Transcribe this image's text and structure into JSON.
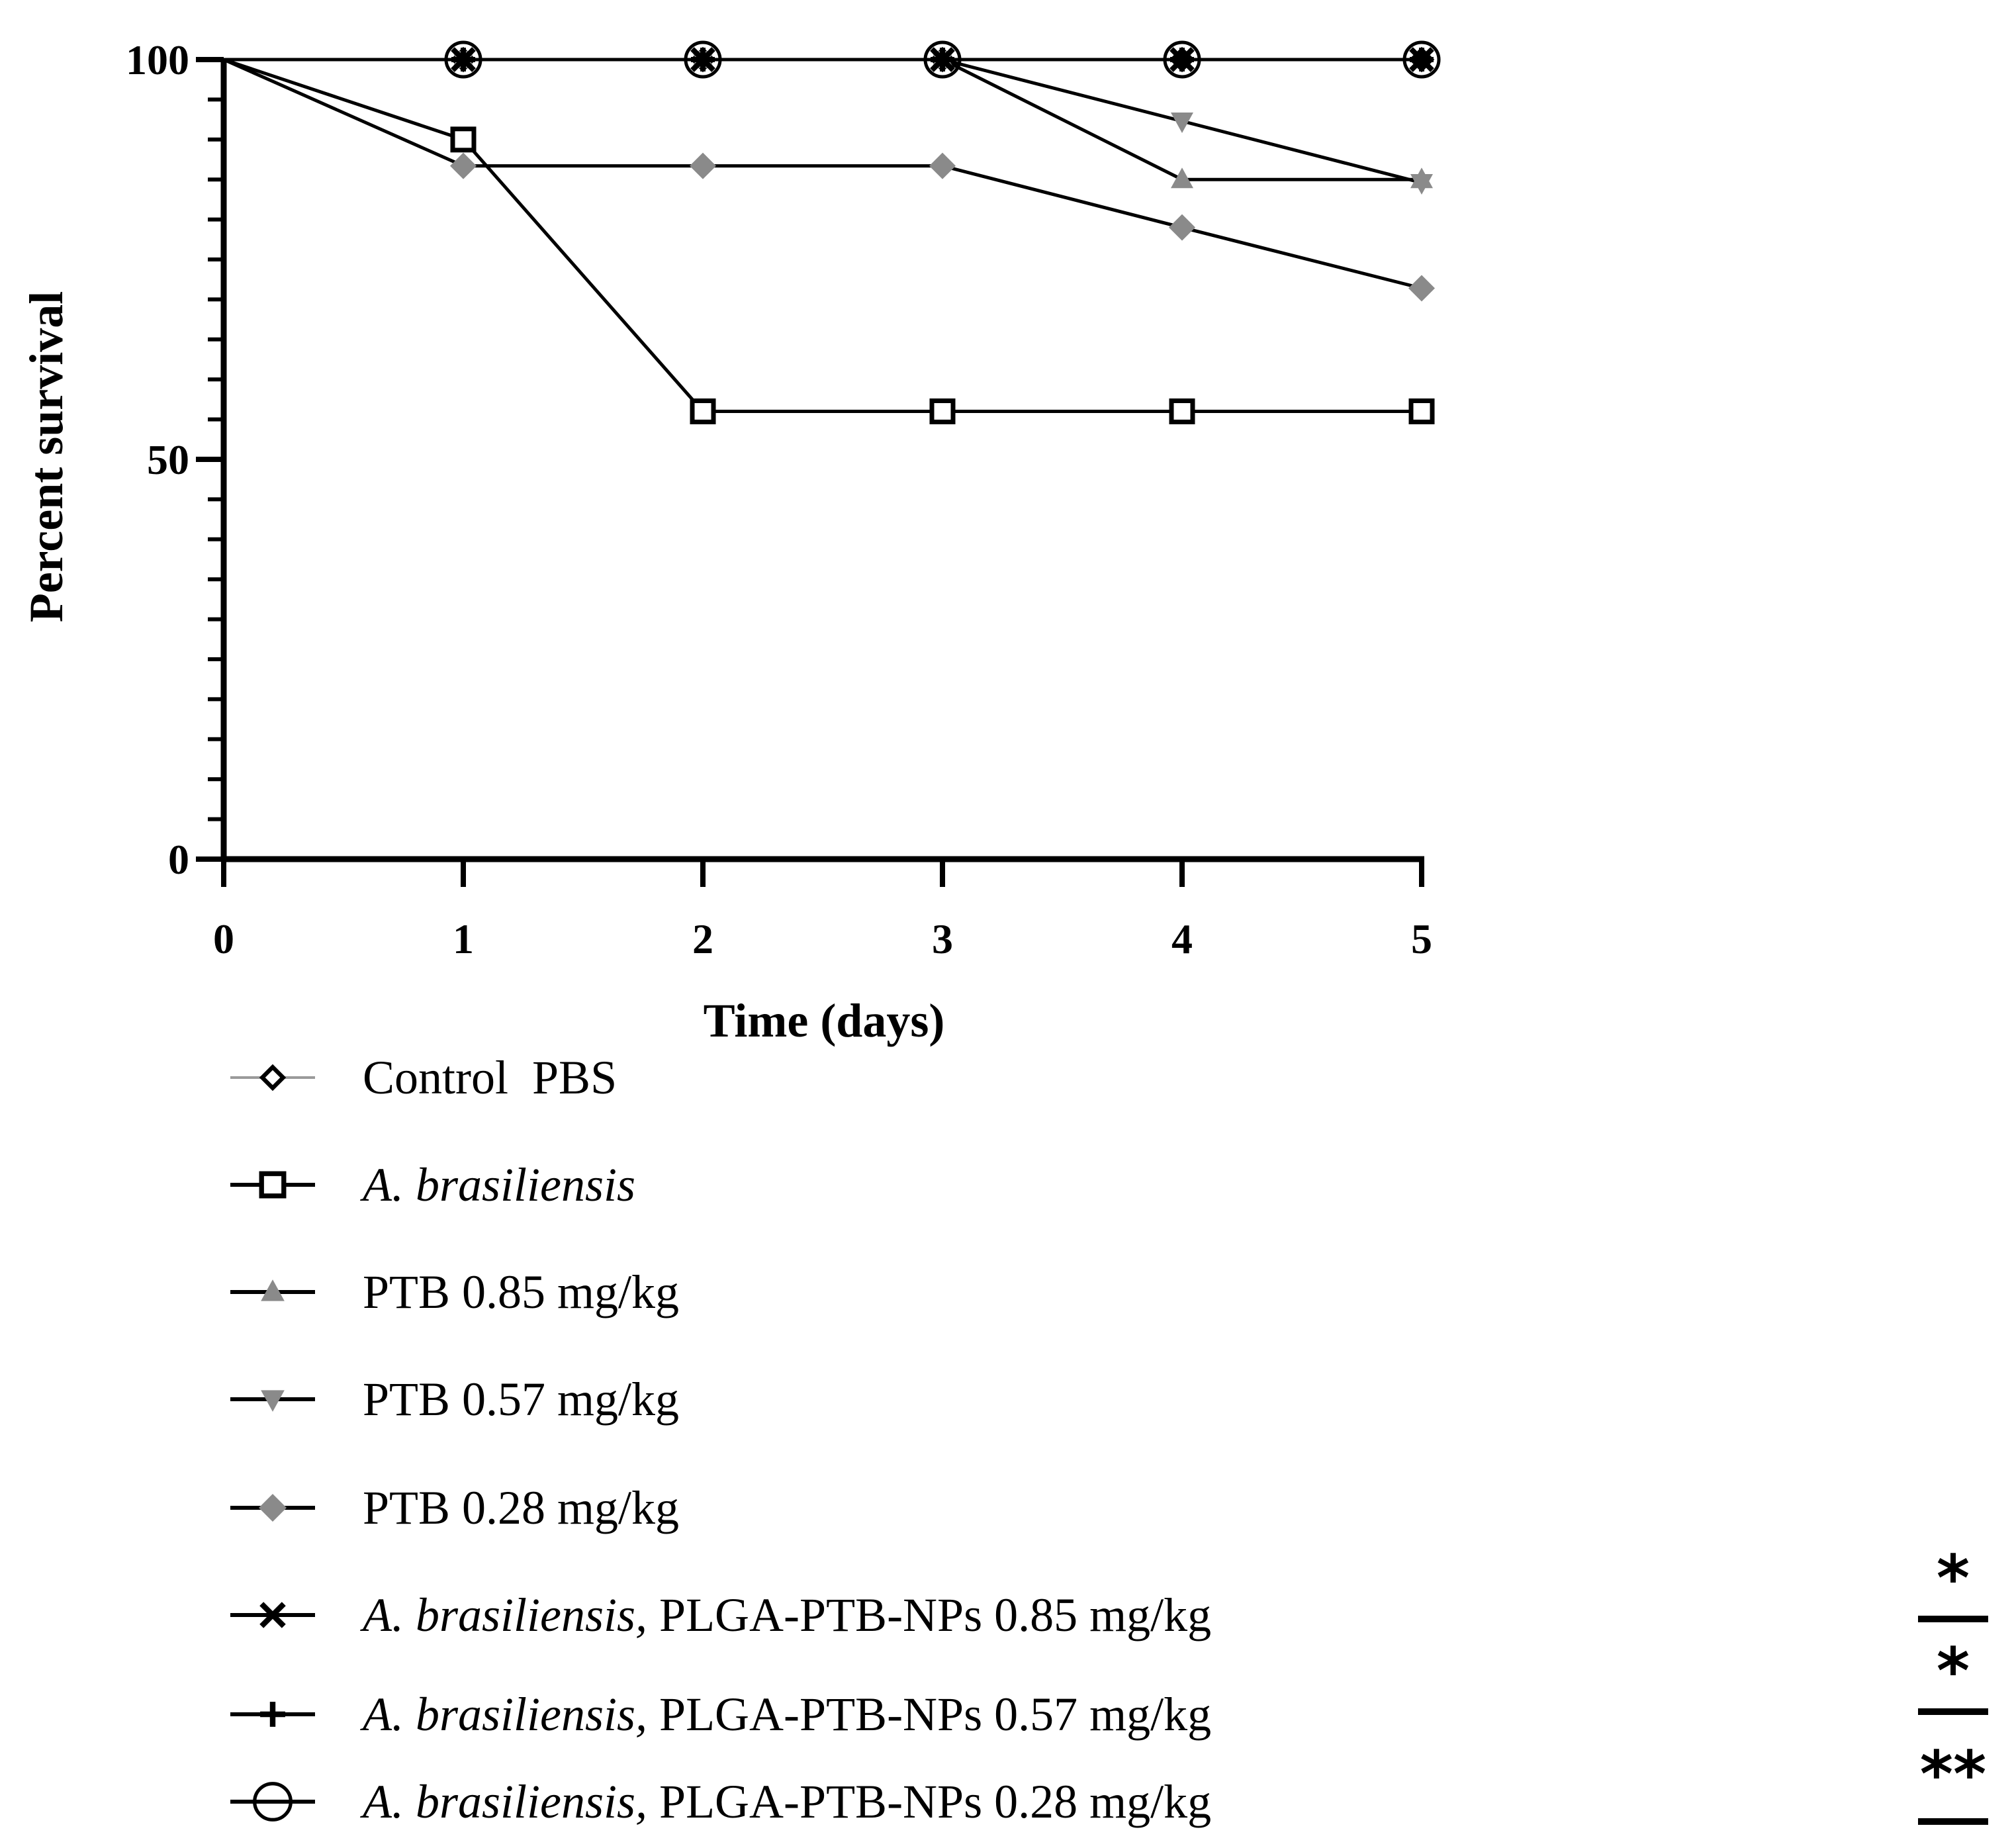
{
  "chart_data": {
    "type": "line",
    "title": "",
    "xlabel": "Time (days)",
    "ylabel": "Percent survival",
    "xlim": [
      0,
      5
    ],
    "ylim": [
      0,
      100
    ],
    "x": [
      0,
      1,
      2,
      3,
      4,
      5
    ],
    "xticks": [
      "0",
      "1",
      "2",
      "3",
      "4",
      "5"
    ],
    "yticks": [
      "0",
      "50",
      "100"
    ],
    "series": [
      {
        "name": "Control  PBS",
        "values": [
          100,
          100,
          100,
          100,
          100,
          100
        ],
        "marker": "diamond-open",
        "color": "#9a9a9a",
        "marker_color": "#000000"
      },
      {
        "name": "PTB 0.28 mg/kg",
        "values": [
          100,
          86.7,
          86.7,
          86.7,
          79,
          71.4
        ],
        "marker": "diamond-filled",
        "color": "#000000",
        "marker_color": "#8a8a8a"
      },
      {
        "name": "PTB 0.57 mg/kg",
        "values": [
          100,
          100,
          100,
          100,
          92.3,
          84.6
        ],
        "marker": "triangle-down",
        "color": "#000000",
        "marker_color": "#8a8a8a"
      },
      {
        "name": "PTB 0.85 mg/kg",
        "values": [
          100,
          100,
          100,
          100,
          85,
          85
        ],
        "marker": "triangle-up",
        "color": "#000000",
        "marker_color": "#8a8a8a"
      },
      {
        "name": "A. brasiliensis",
        "values": [
          100,
          90,
          56,
          56,
          56,
          56
        ],
        "marker": "square-open",
        "color": "#000000",
        "marker_color": "#000000"
      },
      {
        "name": "A. brasiliensis, PLGA-PTB-NPs 0.28 mg/kg",
        "values": [
          100,
          100,
          100,
          100,
          100,
          100
        ],
        "marker": "circle-open",
        "color": "#000000",
        "marker_color": "#000000"
      },
      {
        "name": "A. brasiliensis, PLGA-PTB-NPs 0.57 mg/kg",
        "values": [
          100,
          100,
          100,
          100,
          100,
          100
        ],
        "marker": "plus",
        "color": "#000000",
        "marker_color": "#000000"
      },
      {
        "name": "A. brasiliensis, PLGA-PTB-NPs 0.85 mg/kg",
        "values": [
          100,
          100,
          100,
          100,
          100,
          100
        ],
        "marker": "cross",
        "color": "#000000",
        "marker_color": "#000000"
      }
    ],
    "legend": {
      "placement": "bottom",
      "entries": [
        {
          "italic": "",
          "text": "Control  PBS",
          "marker": "diamond-open",
          "line_color": "#9a9a9a",
          "marker_color": "#000000"
        },
        {
          "italic": "A. brasiliensis",
          "text": "",
          "marker": "square-open",
          "line_color": "#000000",
          "marker_color": "#000000"
        },
        {
          "italic": "",
          "text": "PTB 0.85 mg/kg",
          "marker": "triangle-up",
          "line_color": "#000000",
          "marker_color": "#8a8a8a"
        },
        {
          "italic": "",
          "text": "PTB 0.57 mg/kg",
          "marker": "triangle-down",
          "line_color": "#000000",
          "marker_color": "#8a8a8a"
        },
        {
          "italic": "",
          "text": "PTB 0.28 mg/kg",
          "marker": "diamond-filled",
          "line_color": "#000000",
          "marker_color": "#8a8a8a"
        },
        {
          "italic": "A. brasiliensis,",
          "text": " PLGA-PTB-NPs 0.85 mg/kg",
          "marker": "cross",
          "line_color": "#000000",
          "marker_color": "#000000"
        },
        {
          "italic": "A. brasiliensis,",
          "text": " PLGA-PTB-NPs 0.57 mg/kg",
          "marker": "plus",
          "line_color": "#000000",
          "marker_color": "#000000"
        },
        {
          "italic": "A. brasiliensis,",
          "text": " PLGA-PTB-NPs 0.28 mg/kg",
          "marker": "circle-open",
          "line_color": "#000000",
          "marker_color": "#000000"
        }
      ]
    },
    "significance": [
      "*",
      "*",
      "**"
    ]
  }
}
